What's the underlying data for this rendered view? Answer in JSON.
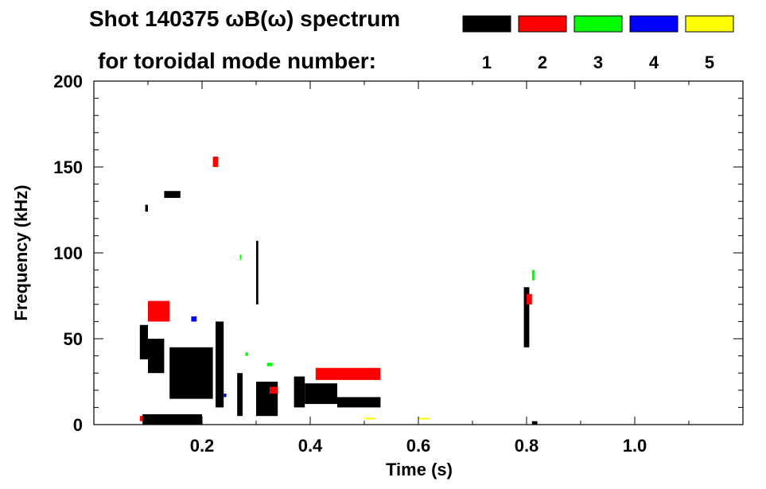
{
  "chart_data": {
    "type": "scatter",
    "title_line1": "Shot 140375 ωB(ω) spectrum",
    "title_line2": "for toroidal mode number:",
    "xlabel": "Time (s)",
    "ylabel": "Frequency (kHz)",
    "xlim": [
      0.0,
      1.2
    ],
    "ylim": [
      0,
      200
    ],
    "x_ticks": [
      "0.2",
      "0.4",
      "0.6",
      "0.8",
      "1.0"
    ],
    "y_ticks": [
      "0",
      "50",
      "100",
      "150",
      "200"
    ],
    "grid": false,
    "legend_placement": "top-right",
    "series": [
      {
        "name": "1",
        "color": "#000000",
        "segments": [
          {
            "t0": 0.085,
            "t1": 0.1,
            "f0": 38,
            "f1": 58
          },
          {
            "t0": 0.1,
            "t1": 0.13,
            "f0": 30,
            "f1": 50
          },
          {
            "t0": 0.14,
            "t1": 0.22,
            "f0": 15,
            "f1": 45
          },
          {
            "t0": 0.225,
            "t1": 0.24,
            "f0": 10,
            "f1": 60
          },
          {
            "t0": 0.265,
            "t1": 0.275,
            "f0": 5,
            "f1": 30
          },
          {
            "t0": 0.3,
            "t1": 0.34,
            "f0": 5,
            "f1": 25
          },
          {
            "t0": 0.37,
            "t1": 0.39,
            "f0": 10,
            "f1": 28
          },
          {
            "t0": 0.39,
            "t1": 0.45,
            "f0": 12,
            "f1": 24
          },
          {
            "t0": 0.45,
            "t1": 0.53,
            "f0": 10,
            "f1": 16
          },
          {
            "t0": 0.795,
            "t1": 0.805,
            "f0": 45,
            "f1": 80
          },
          {
            "t0": 0.13,
            "t1": 0.16,
            "f0": 132,
            "f1": 136
          },
          {
            "t0": 0.095,
            "t1": 0.1,
            "f0": 124,
            "f1": 128
          },
          {
            "t0": 0.3,
            "t1": 0.304,
            "f0": 70,
            "f1": 107
          },
          {
            "t0": 0.09,
            "t1": 0.2,
            "f0": 0,
            "f1": 6
          },
          {
            "t0": 0.81,
            "t1": 0.82,
            "f0": 0,
            "f1": 2
          }
        ]
      },
      {
        "name": "2",
        "color": "#ff0000",
        "segments": [
          {
            "t0": 0.1,
            "t1": 0.14,
            "f0": 60,
            "f1": 72
          },
          {
            "t0": 0.22,
            "t1": 0.23,
            "f0": 150,
            "f1": 156
          },
          {
            "t0": 0.325,
            "t1": 0.34,
            "f0": 18,
            "f1": 22
          },
          {
            "t0": 0.41,
            "t1": 0.53,
            "f0": 26,
            "f1": 33
          },
          {
            "t0": 0.8,
            "t1": 0.81,
            "f0": 70,
            "f1": 76
          },
          {
            "t0": 0.085,
            "t1": 0.09,
            "f0": 2,
            "f1": 5
          }
        ]
      },
      {
        "name": "3",
        "color": "#00ff00",
        "segments": [
          {
            "t0": 0.28,
            "t1": 0.285,
            "f0": 40,
            "f1": 42
          },
          {
            "t0": 0.32,
            "t1": 0.33,
            "f0": 34,
            "f1": 36
          },
          {
            "t0": 0.27,
            "t1": 0.272,
            "f0": 96,
            "f1": 99
          },
          {
            "t0": 0.81,
            "t1": 0.815,
            "f0": 84,
            "f1": 90
          }
        ]
      },
      {
        "name": "4",
        "color": "#0000ff",
        "segments": [
          {
            "t0": 0.18,
            "t1": 0.19,
            "f0": 60,
            "f1": 63
          },
          {
            "t0": 0.24,
            "t1": 0.245,
            "f0": 16,
            "f1": 18
          }
        ]
      },
      {
        "name": "5",
        "color": "#ffff00",
        "segments": [
          {
            "t0": 0.5,
            "t1": 0.52,
            "f0": 3,
            "f1": 4
          },
          {
            "t0": 0.6,
            "t1": 0.62,
            "f0": 3,
            "f1": 4
          }
        ]
      }
    ]
  }
}
